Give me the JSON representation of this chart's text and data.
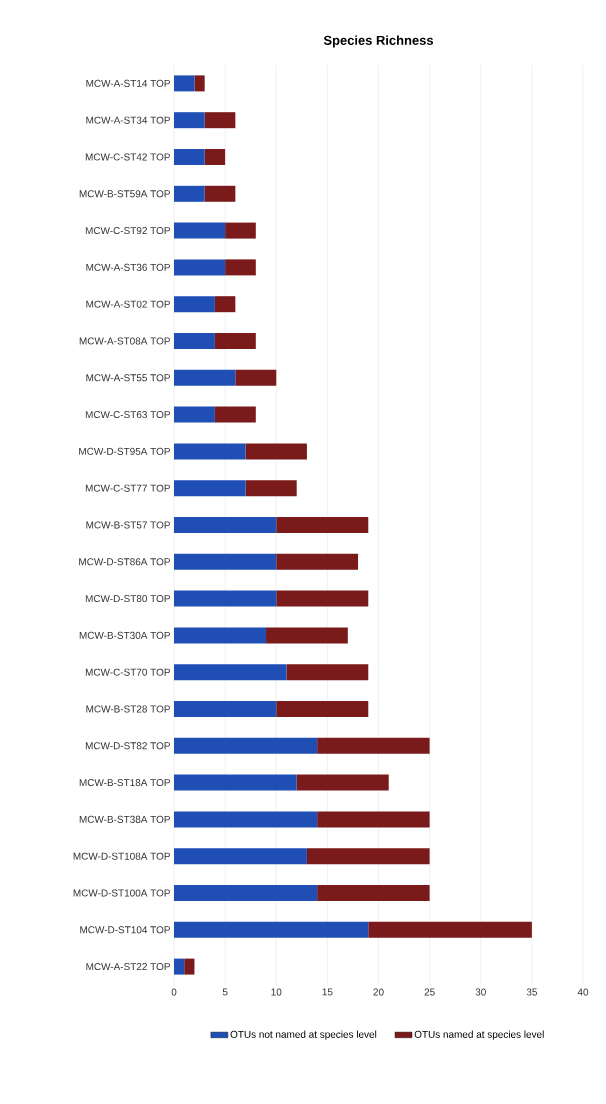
{
  "chart_data": {
    "type": "bar",
    "orientation": "horizontal",
    "stacked": true,
    "title": "Species Richness",
    "categories": [
      "MCW-A-ST14 TOP",
      "MCW-A-ST34 TOP",
      "MCW-C-ST42 TOP",
      "MCW-B-ST59A TOP",
      "MCW-C-ST92 TOP",
      "MCW-A-ST36 TOP",
      "MCW-A-ST02 TOP",
      "MCW-A-ST08A TOP",
      "MCW-A-ST55 TOP",
      "MCW-C-ST63 TOP",
      "MCW-D-ST95A TOP",
      "MCW-C-ST77 TOP",
      "MCW-B-ST57 TOP",
      "MCW-D-ST86A TOP",
      "MCW-D-ST80 TOP",
      "MCW-B-ST30A TOP",
      "MCW-C-ST70 TOP",
      "MCW-B-ST28 TOP",
      "MCW-D-ST82 TOP",
      "MCW-B-ST18A TOP",
      "MCW-B-ST38A TOP",
      "MCW-D-ST108A TOP",
      "MCW-D-ST100A TOP",
      "MCW-D-ST104 TOP",
      "MCW-A-ST22 TOP"
    ],
    "series": [
      {
        "name": "OTUs not named at species level",
        "color": "#1f4fb4",
        "values": [
          2,
          3,
          3,
          3,
          5,
          5,
          4,
          4,
          6,
          4,
          7,
          7,
          10,
          10,
          10,
          9,
          11,
          10,
          14,
          12,
          14,
          13,
          14,
          19,
          1
        ]
      },
      {
        "name": "OTUs named at species level",
        "color": "#7b1a1a",
        "values": [
          1,
          3,
          2,
          3,
          3,
          3,
          2,
          4,
          4,
          4,
          6,
          5,
          9,
          8,
          9,
          8,
          8,
          9,
          11,
          9,
          11,
          12,
          11,
          16,
          1
        ]
      }
    ],
    "xlim": [
      0,
      40
    ],
    "xticks": [
      0,
      5,
      10,
      15,
      20,
      25,
      30,
      35,
      40
    ],
    "grid": "x",
    "legend": "bottom"
  }
}
